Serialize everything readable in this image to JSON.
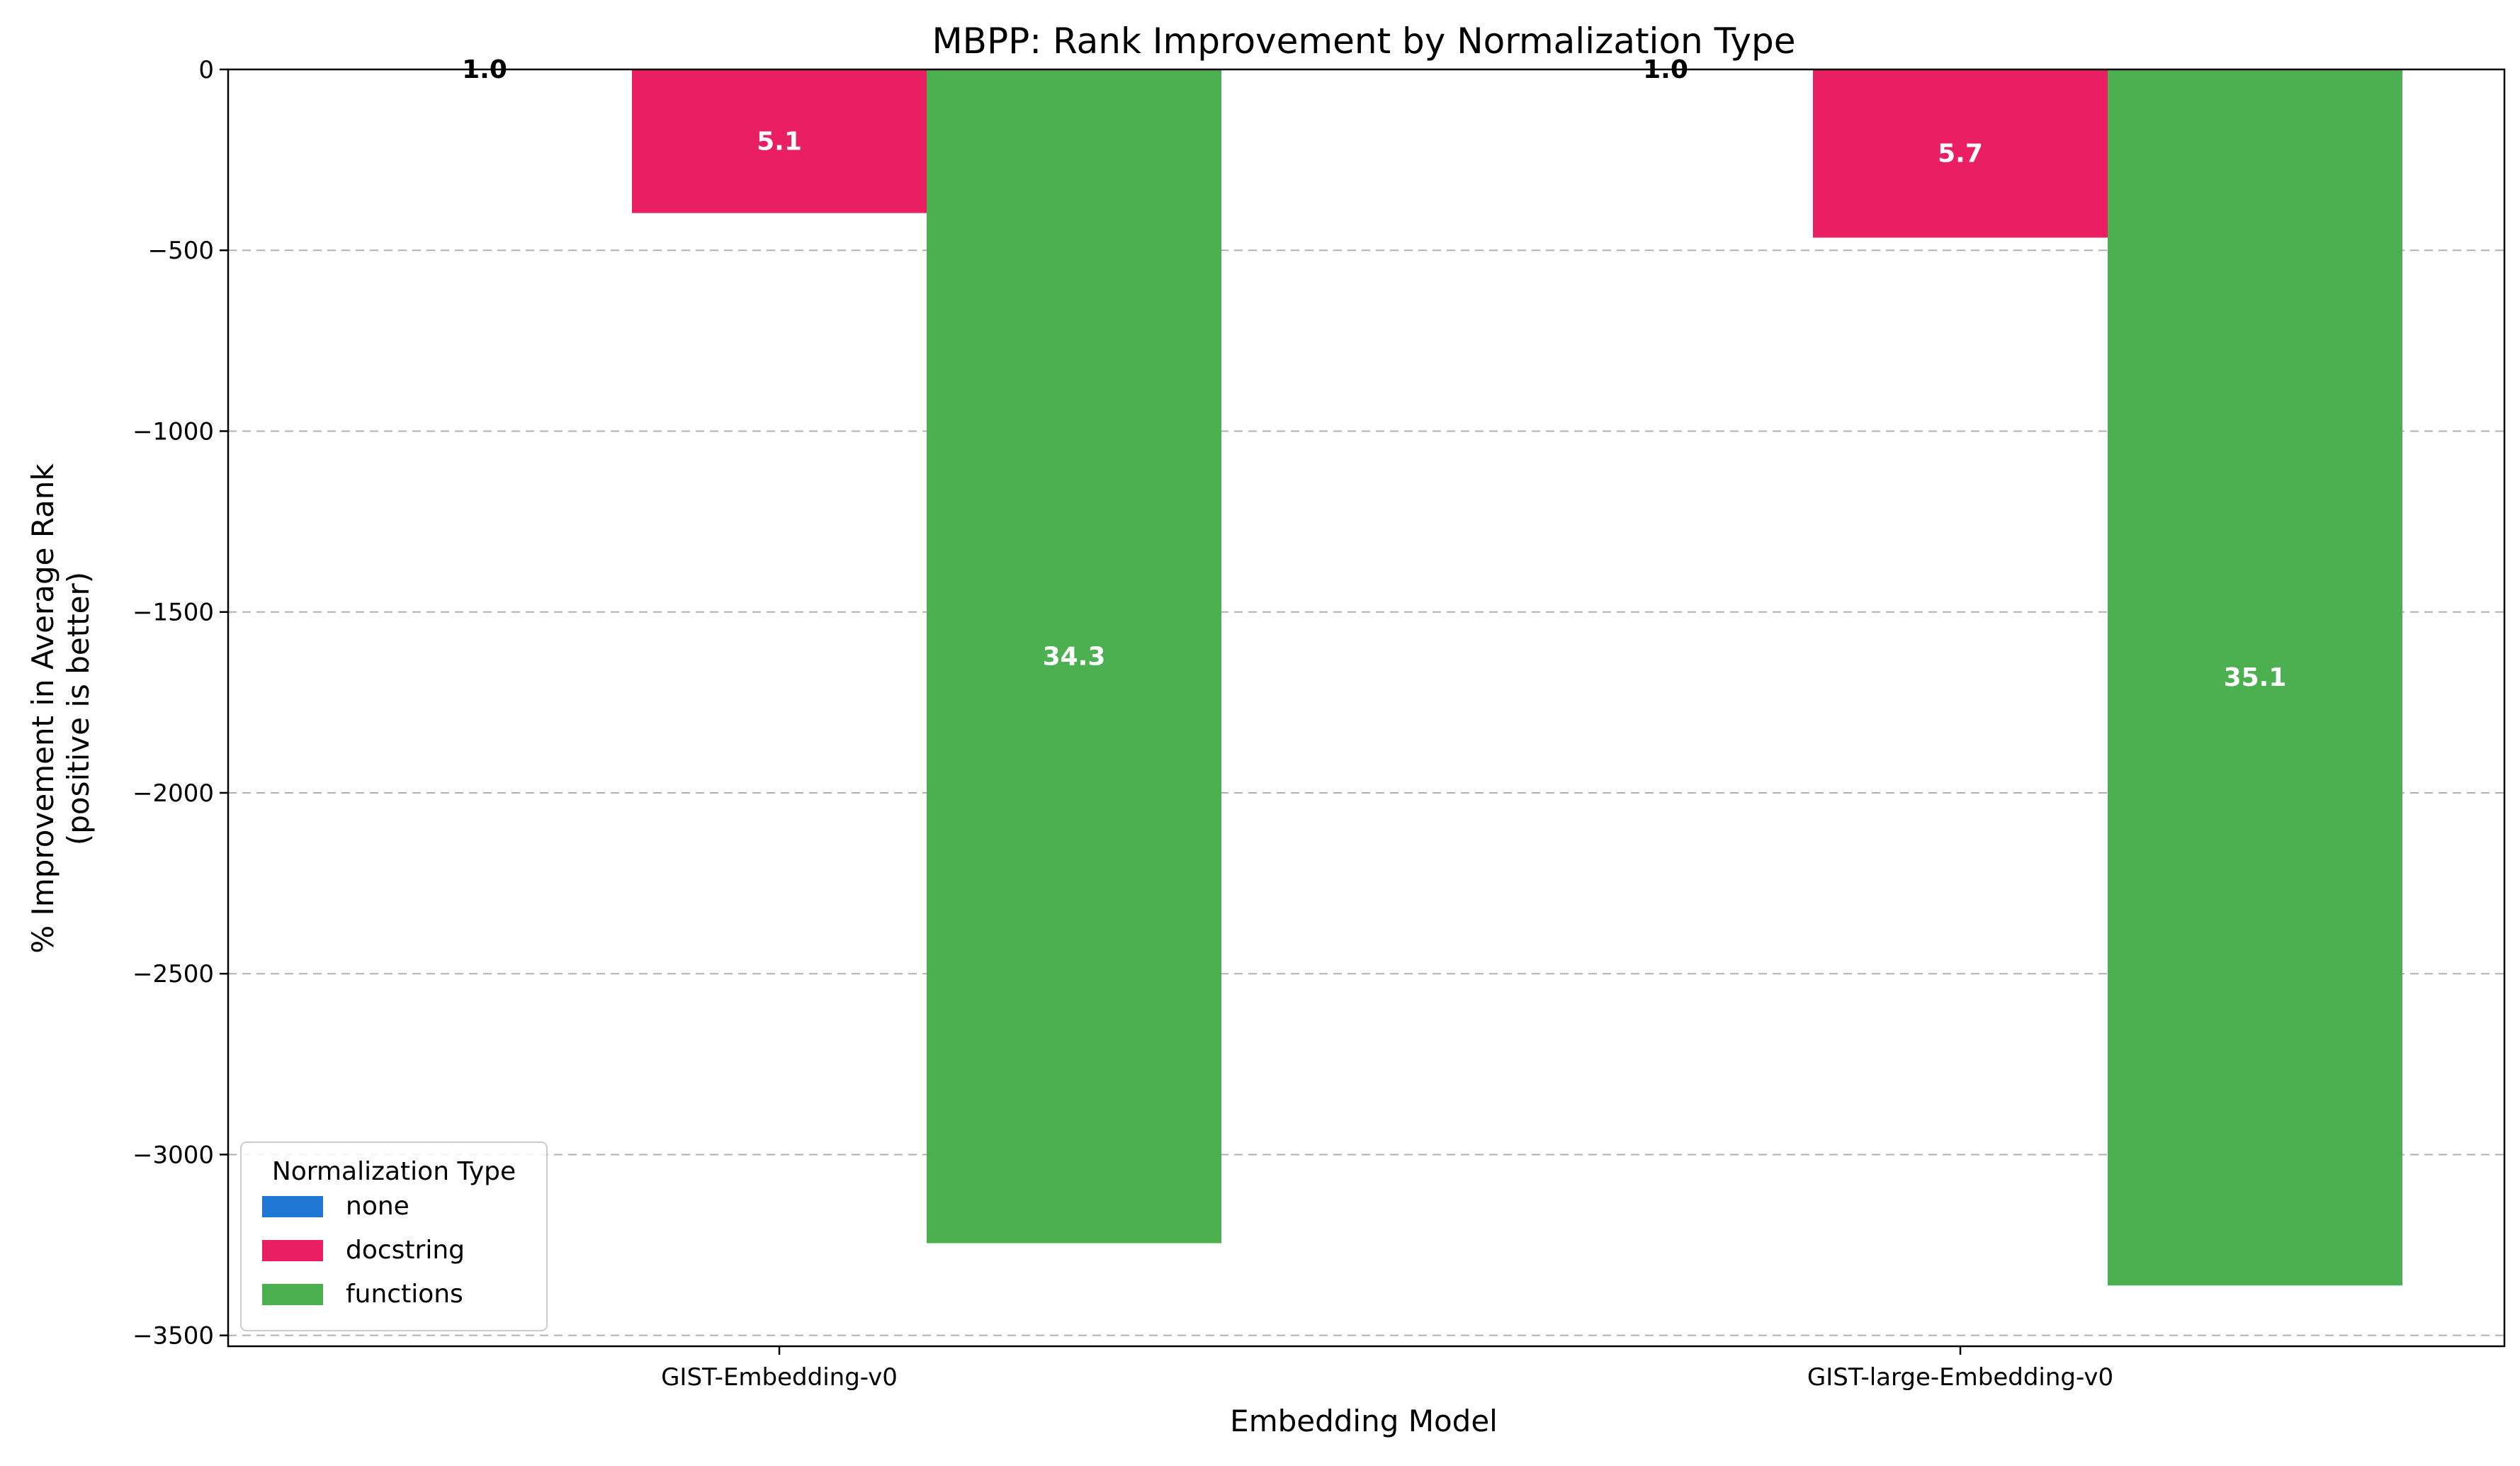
{
  "chart_data": {
    "type": "bar",
    "title": "MBPP: Rank Improvement by Normalization Type",
    "xlabel": "Embedding Model",
    "ylabel_lines": [
      "% Improvement in Average Rank",
      "(positive is better)"
    ],
    "categories": [
      "GIST-Embedding-v0",
      "GIST-large-Embedding-v0"
    ],
    "ylim": [
      -3530,
      0
    ],
    "yticks": [
      0,
      -500,
      -1000,
      -1500,
      -2000,
      -2500,
      -3000,
      -3500
    ],
    "ytick_labels": [
      "0",
      "−500",
      "−1000",
      "−1500",
      "−2000",
      "−2500",
      "−3000",
      "−3500"
    ],
    "grid": "y dashed",
    "legend": {
      "title": "Normalization Type",
      "placement": "lower-left"
    },
    "series": [
      {
        "name": "none",
        "color": "#1f77d3",
        "values": [
          0,
          0
        ],
        "labels": [
          "1.0",
          "1.0"
        ]
      },
      {
        "name": "docstring",
        "color": "#e91e63",
        "values": [
          -397,
          -465
        ],
        "labels": [
          "5.1",
          "5.7"
        ]
      },
      {
        "name": "functions",
        "color": "#4caf50",
        "values": [
          -3245,
          -3362
        ],
        "labels": [
          "34.3",
          "35.1"
        ]
      }
    ]
  }
}
